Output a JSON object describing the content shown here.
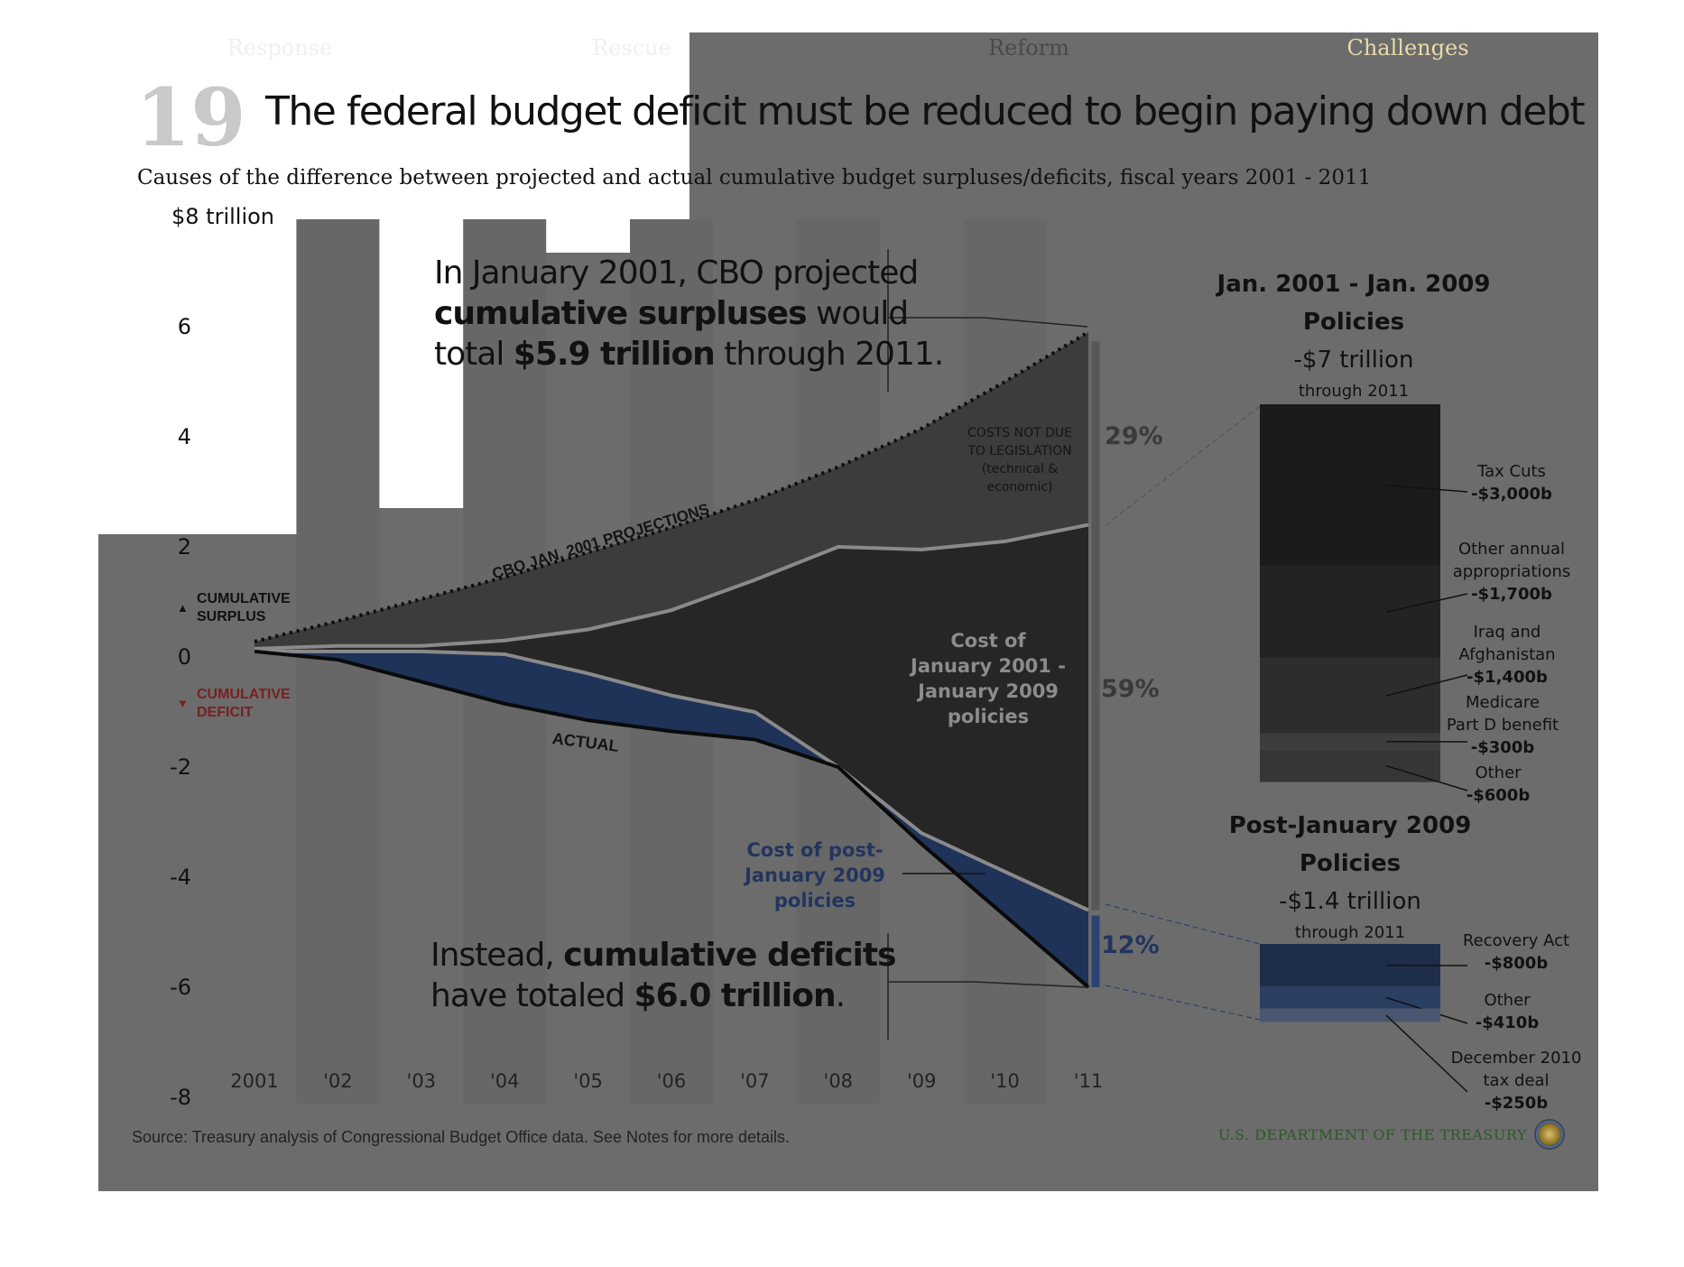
{
  "nav": {
    "segments": [
      {
        "label": "Response",
        "active": false
      },
      {
        "label": "Rescue",
        "active": false
      },
      {
        "label": "Reform",
        "active": false
      },
      {
        "label": "Challenges",
        "active": true
      }
    ]
  },
  "slide_number": "19",
  "header": {
    "title": "The federal budget deficit must be reduced to begin paying down debt",
    "subtitle": "Causes of the difference between projected and actual cumulative budget surpluses/deficits, fiscal years 2001 - 2011"
  },
  "legend": {
    "surplus_label": "CUMULATIVE SURPLUS",
    "deficit_label": "CUMULATIVE DEFICIT"
  },
  "callouts": {
    "projected_line1": "In January 2001, CBO projected",
    "projected_bold": "cumulative surpluses",
    "projected_mid": " would",
    "projected_pre": "total ",
    "projected_bold2": "$5.9 trillion",
    "projected_post": " through 2011.",
    "actual_pre": "Instead, ",
    "actual_bold": "cumulative deficits",
    "actual_line2_pre": "have totaled ",
    "actual_bold2": "$6.0 trillion",
    "actual_line2_post": "."
  },
  "region_labels": {
    "not_legislation": [
      "COSTS NOT DUE",
      "TO LEGISLATION",
      "(technical &",
      "economic)"
    ],
    "policies_2001_2009": [
      "Cost of",
      "January 2001 -",
      "January 2009",
      "policies"
    ],
    "post_2009": [
      "Cost of post-",
      "January 2009",
      "policies"
    ]
  },
  "line_labels": {
    "cbo": "CBO JAN. 2001 PROJECTIONS",
    "actual": "ACTUAL"
  },
  "percentages": {
    "not_legislation": "29%",
    "policies_2001_2009": "59%",
    "post_2009": "12%"
  },
  "panel_2001_2009": {
    "title_line1": "Jan. 2001 - Jan. 2009",
    "title_line2": "Policies",
    "total": "-$7 trillion",
    "through": "through 2011",
    "items": [
      {
        "label": [
          "Tax Cuts"
        ],
        "value": "-$3,000b",
        "amount": 3000,
        "color": "#1b1b1b"
      },
      {
        "label": [
          "Other annual",
          "appropriations"
        ],
        "value": "-$1,700b",
        "amount": 1700,
        "color": "#232323"
      },
      {
        "label": [
          "Iraq and",
          "Afghanistan"
        ],
        "value": "-$1,400b",
        "amount": 1400,
        "color": "#2d2d2d"
      },
      {
        "label": [
          "Medicare",
          "Part D benefit"
        ],
        "value": "-$300b",
        "amount": 300,
        "color": "#3d3d3d"
      },
      {
        "label": [
          "Other"
        ],
        "value": "-$600b",
        "amount": 600,
        "color": "#363636"
      }
    ]
  },
  "panel_post_2009": {
    "title_line1": "Post-January 2009",
    "title_line2": "Policies",
    "total": "-$1.4 trillion",
    "through": "through 2011",
    "items": [
      {
        "label": [
          "Recovery Act"
        ],
        "value": "-$800b",
        "amount": 800,
        "color": "#1e2d4a"
      },
      {
        "label": [
          "Other"
        ],
        "value": "-$410b",
        "amount": 410,
        "color": "#2b3f63"
      },
      {
        "label": [
          "December 2010",
          "tax deal"
        ],
        "value": "-$250b",
        "amount": 250,
        "color": "#4a5570"
      }
    ]
  },
  "footer": {
    "source": "Source: Treasury analysis of Congressional Budget Office data. See Notes for more details.",
    "agency": "U.S. DEPARTMENT OF THE TREASURY"
  },
  "chart_data": {
    "type": "area",
    "title": "The federal budget deficit must be reduced to begin paying down debt",
    "subtitle": "Causes of the difference between projected and actual cumulative budget surpluses/deficits, fiscal years 2001 - 2011",
    "ylabel": "",
    "xlabel": "",
    "ylim": [
      -8,
      8
    ],
    "y_tick_values": [
      8,
      6,
      4,
      2,
      0,
      -2,
      -4,
      -6,
      -8
    ],
    "y_tick_labels": [
      "$8 trillion",
      "6",
      "4",
      "2",
      "0",
      "-2",
      "-4",
      "-6",
      "-8"
    ],
    "categories": [
      "2001",
      "'02",
      "'03",
      "'04",
      "'05",
      "'06",
      "'07",
      "'08",
      "'09",
      "'10",
      "'11"
    ],
    "series": [
      {
        "name": "CBO JAN. 2001 PROJECTIONS",
        "values": [
          0.28,
          0.65,
          1.05,
          1.45,
          1.9,
          2.35,
          2.85,
          3.45,
          4.15,
          5.0,
          5.9
        ]
      },
      {
        "name": "",
        "values": [
          0.15,
          0.2,
          0.2,
          0.3,
          0.5,
          0.85,
          1.4,
          2.0,
          1.95,
          2.1,
          2.4
        ]
      },
      {
        "name": "",
        "values": [
          0.1,
          0.1,
          0.1,
          0.05,
          -0.3,
          -0.7,
          -1.0,
          -2.0,
          -3.2,
          -3.9,
          -4.6
        ]
      },
      {
        "name": "ACTUAL",
        "values": [
          0.1,
          -0.05,
          -0.45,
          -0.85,
          -1.15,
          -1.35,
          -1.5,
          -2.0,
          -3.4,
          -4.7,
          -6.0
        ]
      }
    ],
    "shares": [
      {
        "name": "COSTS NOT DUE TO LEGISLATION",
        "value": 29
      },
      {
        "name": "Cost of January 2001 - January 2009 policies",
        "value": 59
      },
      {
        "name": "Cost of post-January 2009 policies",
        "value": 12
      }
    ],
    "grid": false
  }
}
